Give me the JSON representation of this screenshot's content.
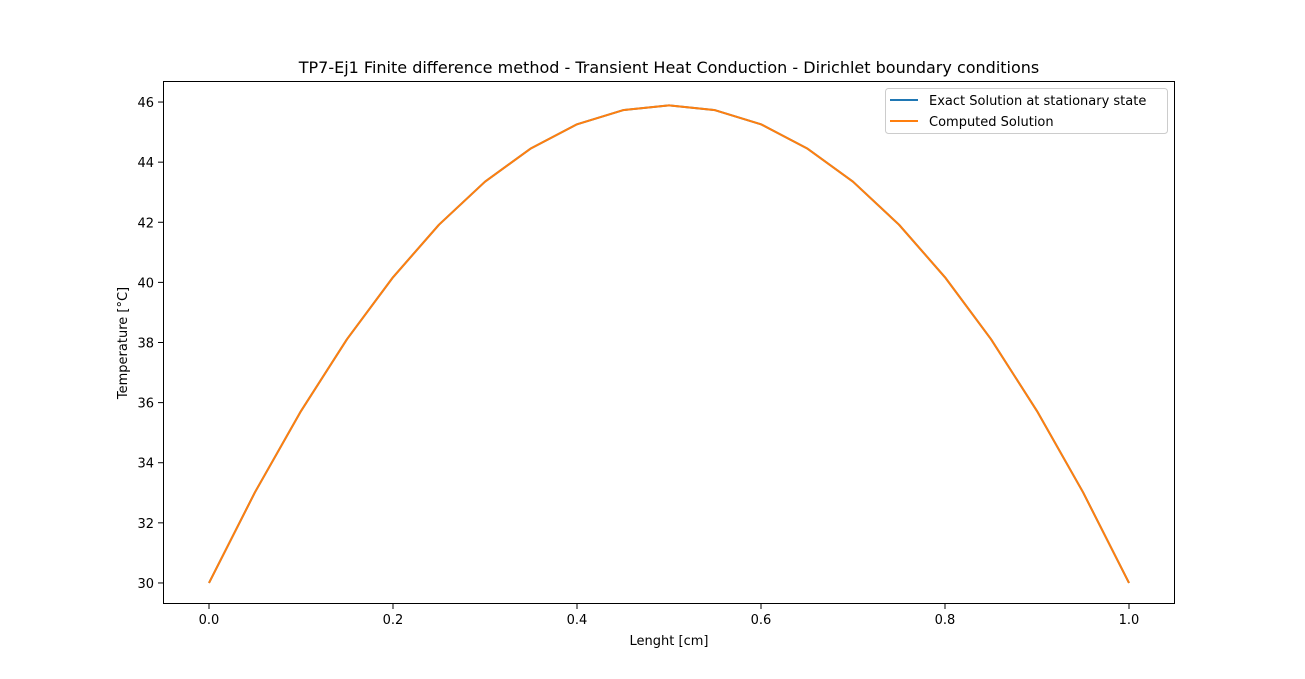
{
  "chart_data": {
    "type": "line",
    "title": "TP7-Ej1 Finite difference method - Transient Heat Conduction  - Dirichlet boundary conditions",
    "xlabel": "Lenght [cm]",
    "ylabel": "Temperature [°C]",
    "xlim": [
      -0.05,
      1.05
    ],
    "ylim": [
      29.3,
      46.7
    ],
    "xticks": [
      0.0,
      0.2,
      0.4,
      0.6,
      0.8,
      1.0
    ],
    "xtick_labels": [
      "0.0",
      "0.2",
      "0.4",
      "0.6",
      "0.8",
      "1.0"
    ],
    "yticks": [
      30,
      32,
      34,
      36,
      38,
      40,
      42,
      44,
      46
    ],
    "ytick_labels": [
      "30",
      "32",
      "34",
      "36",
      "38",
      "40",
      "42",
      "44",
      "46"
    ],
    "grid": false,
    "legend_position": "top-right",
    "series": [
      {
        "name": "Exact Solution at stationary state",
        "color": "#1f77b4",
        "x": [
          0.0,
          0.05,
          0.1,
          0.15,
          0.2,
          0.25,
          0.3,
          0.35,
          0.4,
          0.45,
          0.5,
          0.55,
          0.6,
          0.65,
          0.7,
          0.75,
          0.8,
          0.85,
          0.9,
          0.95,
          1.0
        ],
        "y": [
          30.0,
          33.02,
          35.72,
          38.11,
          40.17,
          41.92,
          43.35,
          44.46,
          45.26,
          45.73,
          45.89,
          45.73,
          45.26,
          44.46,
          43.35,
          41.92,
          40.17,
          38.11,
          35.72,
          33.02,
          30.0
        ]
      },
      {
        "name": "Computed Solution",
        "color": "#ff7f0e",
        "x": [
          0.0,
          0.05,
          0.1,
          0.15,
          0.2,
          0.25,
          0.3,
          0.35,
          0.4,
          0.45,
          0.5,
          0.55,
          0.6,
          0.65,
          0.7,
          0.75,
          0.8,
          0.85,
          0.9,
          0.95,
          1.0
        ],
        "y": [
          30.0,
          33.02,
          35.72,
          38.11,
          40.17,
          41.92,
          43.35,
          44.46,
          45.26,
          45.73,
          45.89,
          45.73,
          45.26,
          44.46,
          43.35,
          41.92,
          40.17,
          38.11,
          35.72,
          33.02,
          30.0
        ]
      }
    ]
  }
}
